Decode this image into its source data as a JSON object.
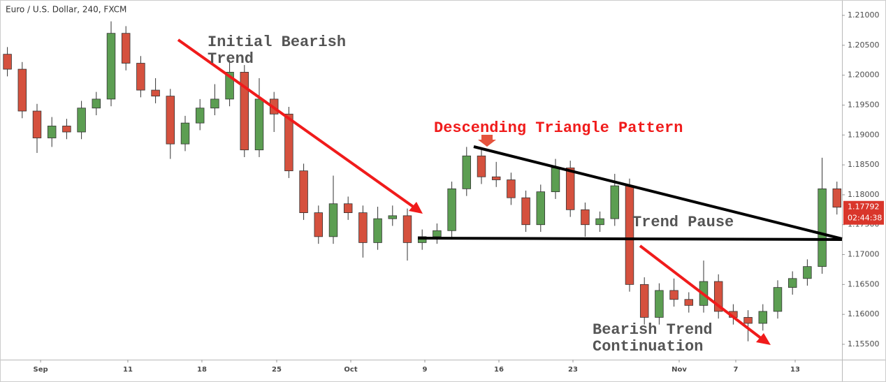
{
  "chart_data": {
    "type": "candlestick",
    "title": "Euro / U.S. Dollar, 240, FXCM",
    "up_color": "#5c9e52",
    "down_color": "#d5513e",
    "x": [
      0,
      1,
      2,
      3,
      4,
      5,
      6,
      7,
      8,
      9,
      10,
      11,
      12,
      13,
      14,
      15,
      16,
      17,
      18,
      19,
      20,
      21,
      22,
      23,
      24,
      25,
      26,
      27,
      28,
      29,
      30,
      31,
      32,
      33,
      34,
      35,
      36,
      37,
      38,
      39,
      40,
      41,
      42,
      43,
      44,
      45,
      46,
      47,
      48,
      49,
      50,
      51,
      52,
      53,
      54,
      55,
      56
    ],
    "open": [
      1.2035,
      1.201,
      1.194,
      1.1895,
      1.1915,
      1.1905,
      1.1945,
      1.196,
      1.207,
      1.202,
      1.1975,
      1.1965,
      1.1885,
      1.192,
      1.1945,
      1.196,
      1.2005,
      1.1875,
      1.196,
      1.1935,
      1.184,
      1.177,
      1.173,
      1.1785,
      1.177,
      1.172,
      1.176,
      1.1765,
      1.172,
      1.173,
      1.174,
      1.181,
      1.1865,
      1.183,
      1.1825,
      1.1795,
      1.175,
      1.1805,
      1.1845,
      1.1775,
      1.175,
      1.176,
      1.1815,
      1.165,
      1.1595,
      1.164,
      1.1625,
      1.1615,
      1.1655,
      1.1605,
      1.1595,
      1.1585,
      1.1605,
      1.1645,
      1.166,
      1.168,
      1.181
    ],
    "high": [
      1.2047,
      1.2022,
      1.1952,
      1.193,
      1.1927,
      1.1957,
      1.1972,
      1.209,
      1.2082,
      1.2032,
      1.1995,
      1.1977,
      1.1932,
      1.196,
      1.1985,
      1.2025,
      1.2017,
      1.1995,
      1.1972,
      1.1947,
      1.1852,
      1.1782,
      1.1832,
      1.1797,
      1.1782,
      1.178,
      1.1782,
      1.1777,
      1.1742,
      1.1752,
      1.1822,
      1.188,
      1.1877,
      1.1855,
      1.1837,
      1.1807,
      1.1817,
      1.186,
      1.1857,
      1.1787,
      1.1772,
      1.1835,
      1.1827,
      1.1662,
      1.1652,
      1.166,
      1.1637,
      1.169,
      1.1667,
      1.1617,
      1.1607,
      1.1617,
      1.1657,
      1.1672,
      1.1692,
      1.1862,
      1.1822
    ],
    "low": [
      1.1998,
      1.1928,
      1.187,
      1.188,
      1.1893,
      1.1893,
      1.1933,
      1.1948,
      1.2008,
      1.1963,
      1.1953,
      1.186,
      1.1873,
      1.1908,
      1.1933,
      1.1948,
      1.1863,
      1.1863,
      1.1905,
      1.1828,
      1.1758,
      1.1718,
      1.1718,
      1.1758,
      1.1695,
      1.1708,
      1.1748,
      1.169,
      1.1708,
      1.1718,
      1.1728,
      1.1798,
      1.1818,
      1.1813,
      1.1783,
      1.1738,
      1.1738,
      1.1793,
      1.1763,
      1.173,
      1.1738,
      1.1748,
      1.1638,
      1.1583,
      1.1583,
      1.1613,
      1.1603,
      1.1603,
      1.1593,
      1.1583,
      1.1555,
      1.1573,
      1.1593,
      1.1633,
      1.1648,
      1.1668,
      1.1767
    ],
    "close": [
      1.201,
      1.194,
      1.1895,
      1.1915,
      1.1905,
      1.1945,
      1.196,
      1.207,
      1.202,
      1.1975,
      1.1965,
      1.1885,
      1.192,
      1.1945,
      1.196,
      1.2005,
      1.1875,
      1.196,
      1.1935,
      1.184,
      1.177,
      1.173,
      1.1785,
      1.177,
      1.172,
      1.176,
      1.1765,
      1.172,
      1.173,
      1.174,
      1.181,
      1.1865,
      1.183,
      1.1825,
      1.1795,
      1.175,
      1.1805,
      1.1845,
      1.1775,
      1.175,
      1.176,
      1.1815,
      1.165,
      1.1595,
      1.164,
      1.1625,
      1.1615,
      1.1655,
      1.1605,
      1.1595,
      1.1585,
      1.1605,
      1.1645,
      1.166,
      1.168,
      1.181,
      1.17792
    ],
    "xlim": [
      -0.5,
      56.34
    ],
    "xticks": [
      {
        "value": 2.24,
        "label": "Sep"
      },
      {
        "value": 8.13,
        "label": "11"
      },
      {
        "value": 13.13,
        "label": "18"
      },
      {
        "value": 18.18,
        "label": "25"
      },
      {
        "value": 23.18,
        "label": "Oct"
      },
      {
        "value": 28.18,
        "label": "9"
      },
      {
        "value": 33.18,
        "label": "16"
      },
      {
        "value": 38.18,
        "label": "23"
      },
      {
        "value": 45.35,
        "label": "Nov"
      },
      {
        "value": 49.17,
        "label": "7"
      },
      {
        "value": 53.18,
        "label": "13"
      }
    ],
    "ylim": [
      1.15243,
      1.21257
    ],
    "yticks": [
      {
        "value": 1.155,
        "label": "1.15500"
      },
      {
        "value": 1.16,
        "label": "1.16000"
      },
      {
        "value": 1.165,
        "label": "1.16500"
      },
      {
        "value": 1.17,
        "label": "1.17000"
      },
      {
        "value": 1.175,
        "label": "1.17500"
      },
      {
        "value": 1.18,
        "label": "1.18000"
      },
      {
        "value": 1.185,
        "label": "1.18500"
      },
      {
        "value": 1.19,
        "label": "1.19000"
      },
      {
        "value": 1.195,
        "label": "1.19500"
      },
      {
        "value": 1.2,
        "label": "1.20000"
      },
      {
        "value": 1.205,
        "label": "1.20500"
      },
      {
        "value": 1.21,
        "label": "1.21000"
      }
    ],
    "price_tag": {
      "value": 1.17792,
      "label": "1.17792"
    },
    "countdown": "02:44:38",
    "annotations": {
      "initial_trend": [
        "Initial Bearish",
        "Trend"
      ],
      "pattern": "Descending Triangle Pattern",
      "pause": "Trend Pause",
      "continuation": [
        "Bearish Trend",
        "Continuation"
      ]
    }
  }
}
